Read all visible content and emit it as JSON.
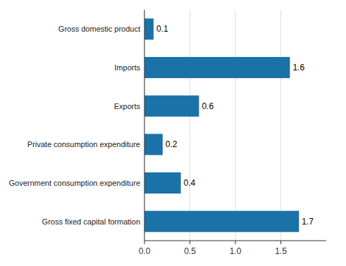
{
  "chart_data": {
    "type": "bar",
    "orientation": "horizontal",
    "categories": [
      "Gross fixed capital formation",
      "Government consumption expenditure",
      "Private consumption expenditure",
      "Exports",
      "Imports",
      "Gross domestic product"
    ],
    "values": [
      1.7,
      0.4,
      0.2,
      0.6,
      1.6,
      0.1
    ],
    "color": "#1a72a8",
    "xlim": [
      0,
      2.0
    ],
    "xticks": [
      {
        "value": 0.0,
        "label": "0.0"
      },
      0.5,
      {
        "value": 1.0,
        "label": "1.0"
      },
      1.5
    ],
    "grid": true,
    "data_labels": true
  }
}
